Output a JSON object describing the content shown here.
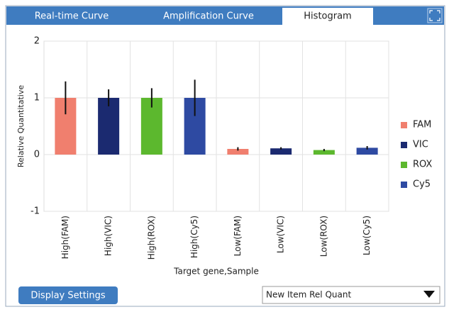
{
  "tabs": [
    "Real-time Curve",
    "Amplification Curve",
    "Histogram"
  ],
  "chart_data": {
    "type": "bar",
    "x_label": "Target gene,Sample",
    "y_label": "Relative Quantitative",
    "categories": [
      "High(FAM)",
      "High(VIC)",
      "High(ROX)",
      "High(Cy5)",
      "Low(FAM)",
      "Low(VIC)",
      "Low(ROX)",
      "Low(Cy5)"
    ],
    "series": [
      {
        "name": "FAM",
        "color": "#f07f6e",
        "values": [
          1,
          null,
          null,
          null,
          0.1,
          null,
          null,
          null
        ],
        "errors": [
          0.29,
          null,
          null,
          null,
          0.03,
          null,
          null,
          null
        ]
      },
      {
        "name": "VIC",
        "color": "#1b2a70",
        "values": [
          null,
          1,
          null,
          null,
          null,
          0.11,
          null,
          null
        ],
        "errors": [
          null,
          0.15,
          null,
          null,
          null,
          0.02,
          null,
          null
        ]
      },
      {
        "name": "ROX",
        "color": "#5cb82e",
        "values": [
          null,
          null,
          1,
          null,
          null,
          null,
          0.08,
          null
        ],
        "errors": [
          null,
          null,
          0.17,
          null,
          null,
          null,
          0.02,
          null
        ]
      },
      {
        "name": "Cy5",
        "color": "#2e4aa2",
        "values": [
          null,
          null,
          null,
          1,
          null,
          null,
          null,
          0.12
        ],
        "errors": [
          null,
          null,
          null,
          0.32,
          null,
          null,
          null,
          0.03
        ]
      }
    ],
    "ylim": [
      -1,
      2
    ],
    "yticks": [
      -1,
      0,
      1,
      2
    ],
    "grid": true,
    "legend": "right"
  },
  "button": "Display Settings",
  "dropdown": "New Item Rel Quant"
}
